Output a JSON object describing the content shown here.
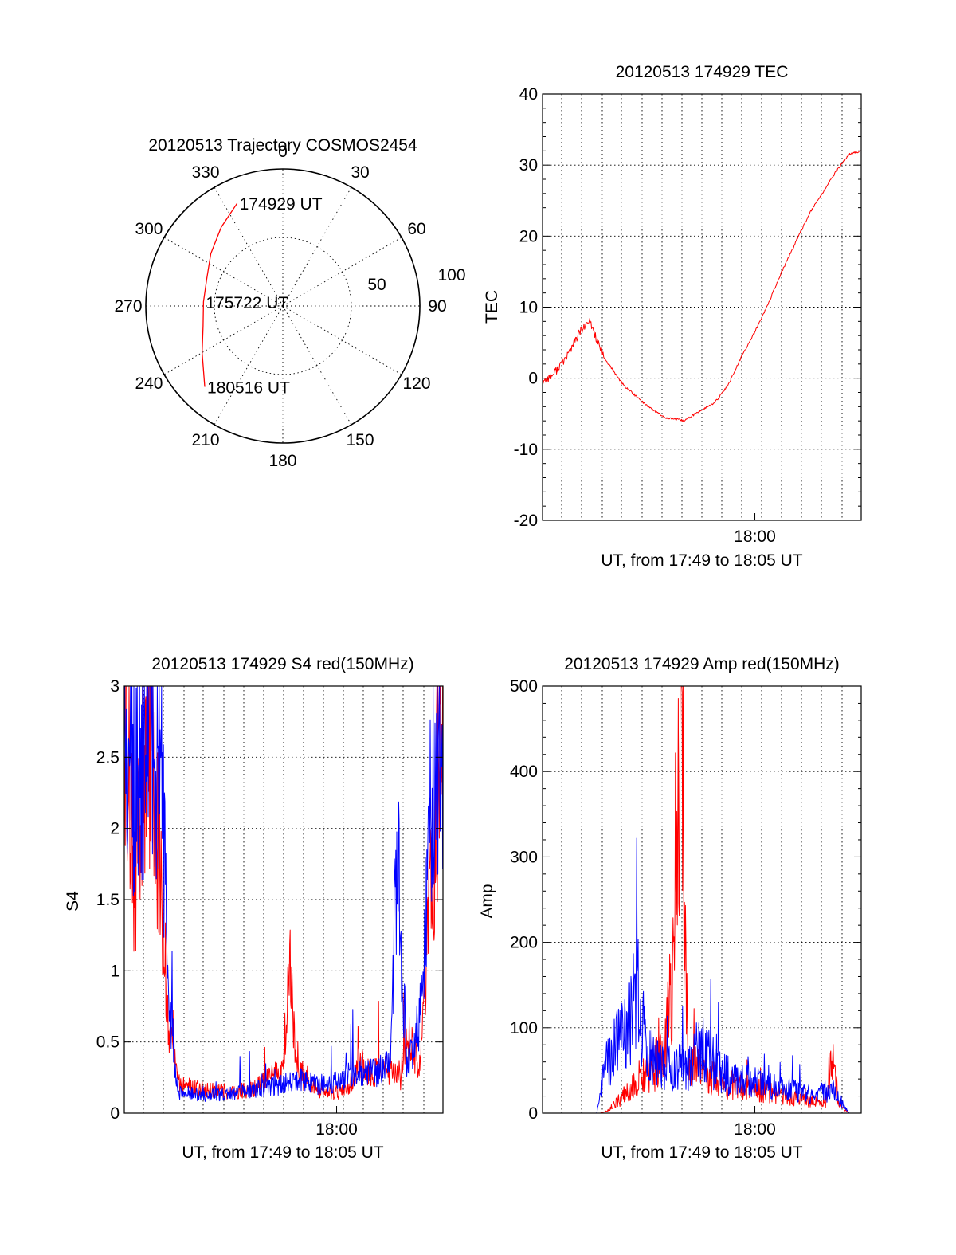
{
  "chart_data": [
    {
      "type": "polar",
      "title": "20120513 Trajectory COSMOS2454",
      "angle_labels": [
        "0",
        "30",
        "60",
        "90",
        "120",
        "150",
        "180",
        "210",
        "240",
        "270",
        "300",
        "330"
      ],
      "radial_labels": [
        "50",
        "100"
      ],
      "rlim": [
        0,
        100
      ],
      "grid": true,
      "track": {
        "color": "#ff0000",
        "points": [
          {
            "az": 336,
            "zen": 82
          },
          {
            "az": 322,
            "zen": 73
          },
          {
            "az": 306,
            "zen": 65
          },
          {
            "az": 290,
            "zen": 59
          },
          {
            "az": 273,
            "zen": 58
          },
          {
            "az": 256,
            "zen": 60
          },
          {
            "az": 240,
            "zen": 68
          },
          {
            "az": 224,
            "zen": 82
          }
        ]
      },
      "annotations": [
        {
          "text": "174929 UT",
          "az": 336,
          "zen": 82
        },
        {
          "text": "175722 UT",
          "az": 273,
          "zen": 58
        },
        {
          "text": "180516 UT",
          "az": 224,
          "zen": 82
        }
      ]
    },
    {
      "type": "line",
      "title": "20120513 174929 TEC",
      "xlabel": "UT, from 17:49 to 18:05 UT",
      "ylabel": "TEC",
      "xlim": [
        "17:49:29",
        "18:05:16"
      ],
      "ylim": [
        -20,
        40
      ],
      "yticks": [
        "-20",
        "-10",
        "0",
        "10",
        "20",
        "30",
        "40"
      ],
      "xtick_labels": [
        {
          "t": "18:00",
          "label": "18:00"
        }
      ],
      "grid": true,
      "series": [
        {
          "color": "#ff0000",
          "x": [
            "17:49:29",
            "17:50:00",
            "17:50:40",
            "17:51:20",
            "17:51:50",
            "17:52:30",
            "17:53:30",
            "17:54:30",
            "17:55:30",
            "17:56:30",
            "17:57:20",
            "17:58:00",
            "17:58:40",
            "17:59:20",
            "18:00:00",
            "18:00:40",
            "18:01:20",
            "18:02:00",
            "18:02:40",
            "18:03:20",
            "18:04:00",
            "18:04:40",
            "18:05:16"
          ],
          "y": [
            -0.5,
            0.5,
            3,
            6.5,
            8,
            3,
            -1,
            -3.5,
            -5.5,
            -6,
            -4.5,
            -3.5,
            -1,
            3,
            6.5,
            10.5,
            15,
            19,
            23,
            26,
            29,
            31.5,
            32
          ]
        }
      ]
    },
    {
      "type": "line",
      "title": "20120513 174929 S4 red(150MHz)",
      "xlabel": "UT, from 17:49 to 18:05 UT",
      "ylabel": "S4",
      "xlim": [
        "17:49:29",
        "18:05:16"
      ],
      "ylim": [
        0,
        3
      ],
      "yticks": [
        "0",
        "0.5",
        "1",
        "1.5",
        "2",
        "2.5",
        "3"
      ],
      "xtick_labels": [
        {
          "t": "18:00",
          "label": "18:00"
        }
      ],
      "grid": true,
      "series": [
        {
          "color": "#ff0000",
          "x": [
            "17:49:29",
            "17:50:00",
            "17:50:40",
            "17:51:20",
            "17:51:40",
            "17:52:10",
            "17:53:30",
            "17:55:00",
            "17:56:00",
            "17:57:20",
            "17:57:40",
            "17:58:00",
            "17:58:40",
            "17:59:30",
            "18:00:30",
            "18:01:10",
            "18:01:40",
            "18:02:40",
            "18:03:10",
            "18:03:30",
            "18:04:10",
            "18:04:40",
            "18:05:16"
          ],
          "y": [
            3,
            1.6,
            2.8,
            1.5,
            0.6,
            0.2,
            0.16,
            0.15,
            0.18,
            0.3,
            1.05,
            0.3,
            0.2,
            0.14,
            0.16,
            0.35,
            0.28,
            0.3,
            0.22,
            0.5,
            0.35,
            1.5,
            3
          ]
        },
        {
          "color": "#0000ff",
          "x": [
            "17:49:29",
            "17:50:00",
            "17:50:40",
            "17:51:20",
            "17:51:40",
            "17:52:10",
            "17:53:30",
            "17:55:00",
            "17:56:00",
            "17:57:20",
            "17:58:00",
            "17:59:00",
            "18:00:00",
            "18:01:10",
            "18:02:00",
            "18:02:40",
            "18:03:00",
            "18:03:30",
            "18:04:10",
            "18:04:40",
            "18:05:16"
          ],
          "y": [
            3,
            2.2,
            2.7,
            2.4,
            0.8,
            0.15,
            0.12,
            0.14,
            0.17,
            0.2,
            0.25,
            0.2,
            0.22,
            0.3,
            0.28,
            0.4,
            1.8,
            0.3,
            0.7,
            2.3,
            2.6
          ]
        }
      ]
    },
    {
      "type": "line",
      "title": "20120513 174929 Amp red(150MHz)",
      "xlabel": "UT, from 17:49 to 18:05 UT",
      "ylabel": "Amp",
      "xlim": [
        "17:49:29",
        "18:05:16"
      ],
      "ylim": [
        0,
        500
      ],
      "yticks": [
        "0",
        "100",
        "200",
        "300",
        "400",
        "500"
      ],
      "xtick_labels": [
        {
          "t": "18:00",
          "label": "18:00"
        }
      ],
      "grid": true,
      "series": [
        {
          "color": "#ff0000",
          "x": [
            "17:49:29",
            "17:52:20",
            "17:52:40",
            "17:53:30",
            "17:54:30",
            "17:55:30",
            "17:56:00",
            "17:56:20",
            "17:56:40",
            "17:57:20",
            "17:58:30",
            "17:59:30",
            "18:00:30",
            "18:01:30",
            "18:02:30",
            "18:03:30",
            "18:03:50",
            "18:04:10",
            "18:04:40",
            "18:05:16"
          ],
          "y": [
            0,
            0,
            2,
            20,
            45,
            65,
            170,
            478,
            70,
            45,
            35,
            28,
            25,
            20,
            15,
            10,
            65,
            10,
            0,
            0
          ]
        },
        {
          "color": "#0000ff",
          "x": [
            "17:49:29",
            "17:52:10",
            "17:52:40",
            "17:53:20",
            "17:54:10",
            "17:54:40",
            "17:55:20",
            "17:56:00",
            "17:56:40",
            "17:57:20",
            "17:58:10",
            "17:59:00",
            "18:00:00",
            "18:01:00",
            "18:02:00",
            "18:03:00",
            "18:03:50",
            "18:04:20",
            "18:04:40",
            "18:05:16"
          ],
          "y": [
            0,
            0,
            60,
            90,
            140,
            65,
            60,
            55,
            55,
            80,
            50,
            40,
            35,
            30,
            25,
            20,
            30,
            10,
            0,
            0
          ]
        }
      ]
    }
  ]
}
